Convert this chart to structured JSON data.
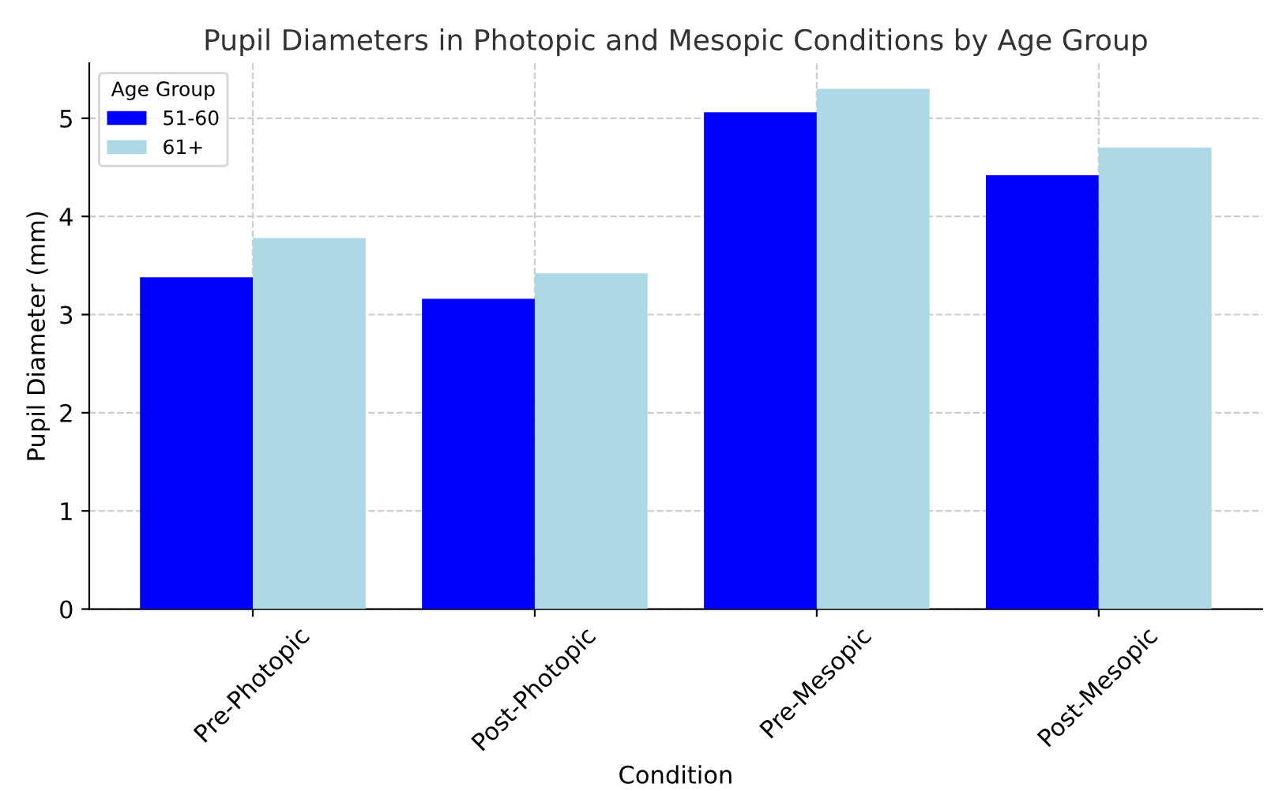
{
  "chart_data": {
    "type": "bar",
    "title": "Pupil Diameters in Photopic and Mesopic Conditions by Age Group",
    "xlabel": "Condition",
    "ylabel": "Pupil Diameter (mm)",
    "legend_title": "Age Group",
    "categories": [
      "Pre-Photopic",
      "Post-Photopic",
      "Pre-Mesopic",
      "Post-Mesopic"
    ],
    "series": [
      {
        "name": "51-60",
        "color": "#0000ff",
        "values": [
          3.38,
          3.16,
          5.06,
          4.42
        ]
      },
      {
        "name": "61+",
        "color": "#add8e6",
        "values": [
          3.78,
          3.42,
          5.3,
          4.7
        ]
      }
    ],
    "ylim": [
      0,
      5.56
    ],
    "yticks": [
      0,
      1,
      2,
      3,
      4,
      5
    ],
    "grid": true,
    "legend": "top left"
  }
}
